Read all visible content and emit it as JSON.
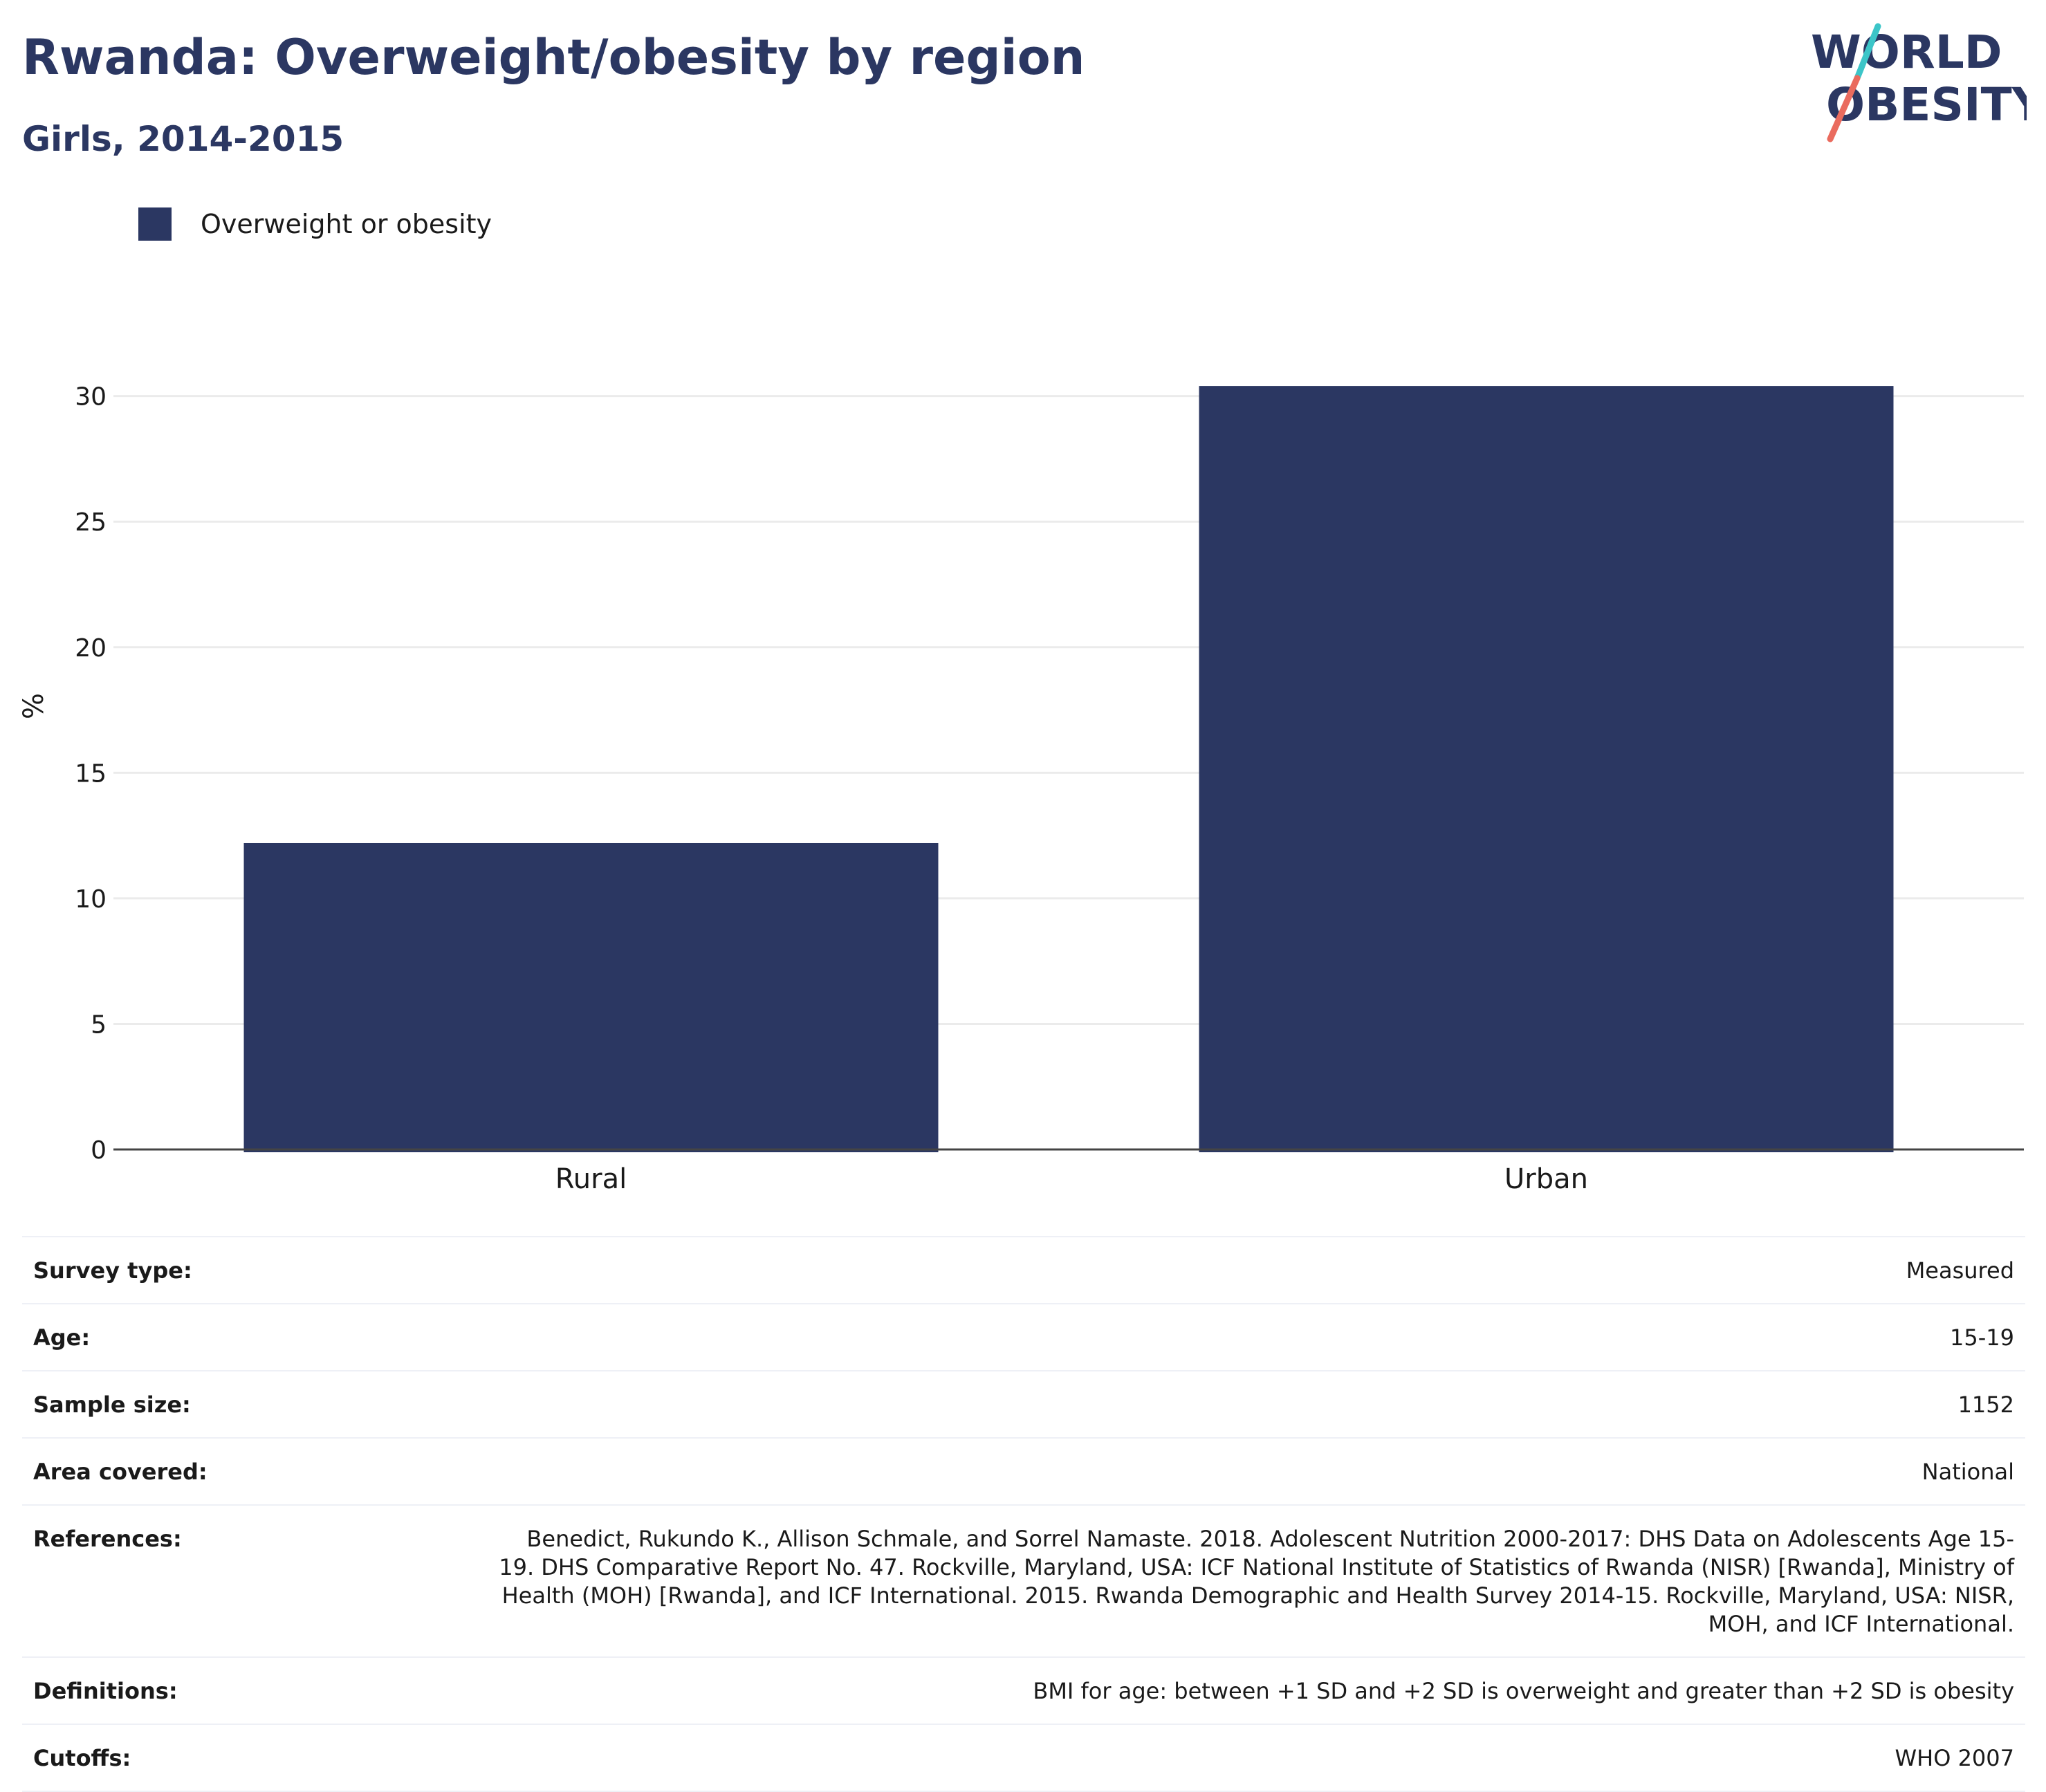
{
  "header": {
    "title": "Rwanda: Overweight/obesity by region",
    "subtitle": "Girls, 2014-2015"
  },
  "logo": {
    "line1": "WORLD",
    "line2": "OBESITY",
    "colors": {
      "text": "#2b3762",
      "slash_top": "#3cc5c8",
      "slash_bottom": "#ea6b5e"
    }
  },
  "chart_data": {
    "type": "bar",
    "title": "Rwanda: Overweight/obesity by region",
    "subtitle": "Girls, 2014-2015",
    "categories": [
      "Rural",
      "Urban"
    ],
    "series": [
      {
        "name": "Overweight or obesity",
        "values": [
          12.2,
          30.4
        ],
        "color": "#2b3762"
      }
    ],
    "xlabel": "",
    "ylabel": "%",
    "ylim": [
      0,
      32
    ],
    "yticks": [
      0,
      5,
      10,
      15,
      20,
      25,
      30
    ],
    "grid": true,
    "legend_position": "top-left"
  },
  "info_table": [
    {
      "key": "Survey type:",
      "value": "Measured"
    },
    {
      "key": "Age:",
      "value": "15-19"
    },
    {
      "key": "Sample size:",
      "value": "1152"
    },
    {
      "key": "Area covered:",
      "value": "National"
    },
    {
      "key": "References:",
      "value": "Benedict, Rukundo K., Allison Schmale, and Sorrel Namaste. 2018. Adolescent Nutrition 2000-2017: DHS Data on Adolescents Age 15-19. DHS Comparative Report No. 47. Rockville, Maryland, USA: ICF National Institute of Statistics of Rwanda (NISR) [Rwanda], Ministry of Health (MOH) [Rwanda], and ICF International. 2015. Rwanda Demographic and Health Survey 2014-15. Rockville, Maryland, USA: NISR, MOH, and ICF International."
    },
    {
      "key": "Definitions:",
      "value": "BMI for age: between +1 SD and +2 SD is overweight and greater than +2 SD is obesity"
    },
    {
      "key": "Cutoffs:",
      "value": "WHO 2007"
    }
  ]
}
